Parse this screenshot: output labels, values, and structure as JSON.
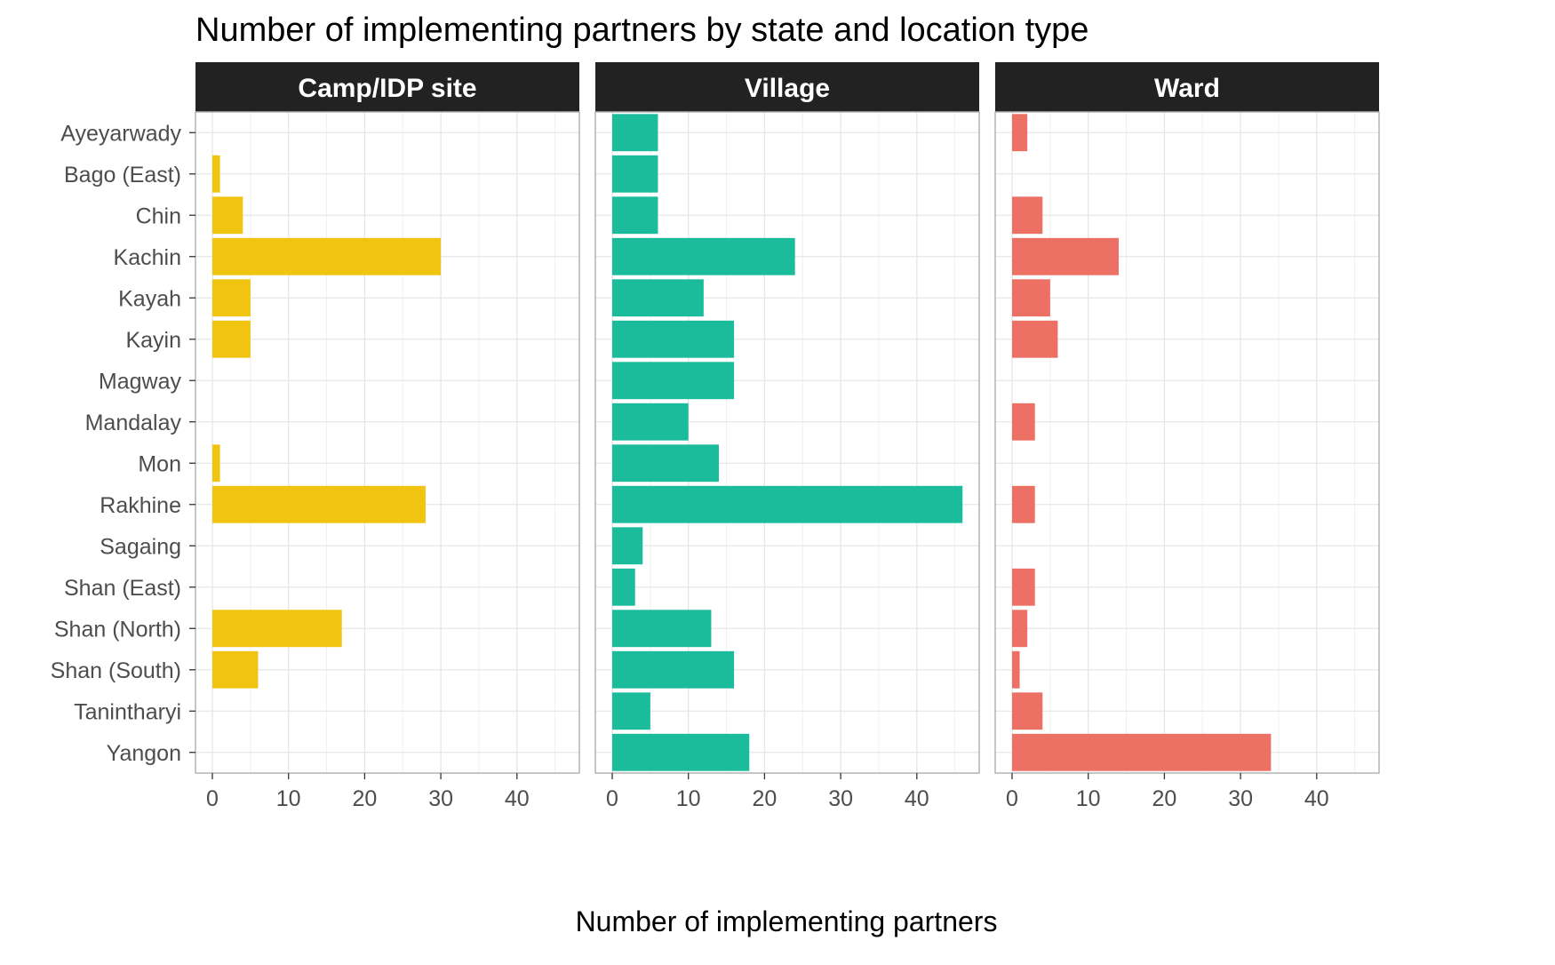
{
  "chart_data": {
    "type": "bar",
    "orientation": "horizontal",
    "title": "Number of implementing partners by state and location type",
    "xlabel": "Number of implementing partners",
    "ylabel": "",
    "xlim": [
      0,
      46
    ],
    "x_ticks": [
      0,
      10,
      20,
      30,
      40
    ],
    "grid": true,
    "legend": "none",
    "categories": [
      "Ayeyarwady",
      "Bago (East)",
      "Chin",
      "Kachin",
      "Kayah",
      "Kayin",
      "Magway",
      "Mandalay",
      "Mon",
      "Rakhine",
      "Sagaing",
      "Shan (East)",
      "Shan (North)",
      "Shan (South)",
      "Tanintharyi",
      "Yangon"
    ],
    "panels": [
      {
        "name": "Camp/IDP site",
        "color": "#F1C40F",
        "values": [
          0,
          1,
          4,
          30,
          5,
          5,
          0,
          0,
          1,
          28,
          0,
          0,
          17,
          6,
          0,
          0
        ]
      },
      {
        "name": "Village",
        "color": "#1ABC9C",
        "values": [
          6,
          6,
          6,
          24,
          12,
          16,
          16,
          10,
          14,
          46,
          4,
          3,
          13,
          16,
          5,
          18
        ]
      },
      {
        "name": "Ward",
        "color": "#EC7063",
        "values": [
          2,
          0,
          4,
          14,
          5,
          6,
          0,
          3,
          0,
          3,
          0,
          3,
          2,
          1,
          4,
          34
        ]
      }
    ],
    "strip_color": "#222222",
    "strip_text_color": "#ffffff",
    "grid_color": "#e6e6e6",
    "panel_border_color": "#b3b3b3"
  }
}
